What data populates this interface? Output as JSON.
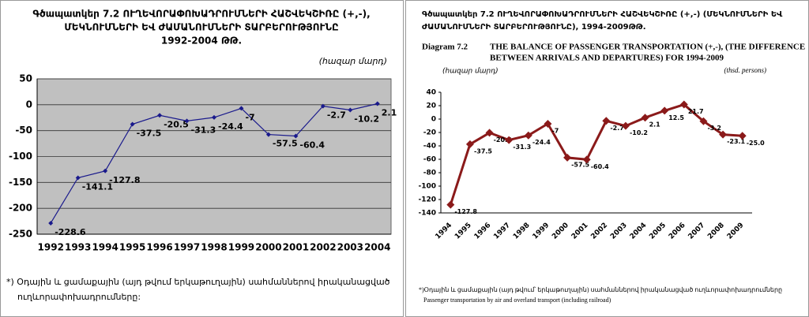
{
  "chart_data": [
    {
      "type": "line",
      "title": [
        "Գծապատկեր 7.2     ՈՒՂԵՎՈՐԱՓՈԽԱԴՐՈՒՄՆԵՐԻ ՀԱՇՎԵԿՇԻՌԸ (+,-),",
        "ՄԵԿՆՈՒՄՆԵՐԻ ԵՎ ԺԱՄԱՆՈՒՄՆԵՐԻ ՏԱՐԲԵՐՈՒԹՅՈՒՆԸ",
        "1992-2004 ԹԹ."
      ],
      "unit_label": "(հազար մարդ)",
      "categories": [
        "1992",
        "1993",
        "1994",
        "1995",
        "1996",
        "1997",
        "1998",
        "1999",
        "2000",
        "2001",
        "2002",
        "2003",
        "2004"
      ],
      "values": [
        -228.6,
        -141.1,
        -127.8,
        -37.5,
        -20.5,
        -31.3,
        -24.4,
        -7,
        -57.5,
        -60.4,
        -2.7,
        -10.2,
        2.1
      ],
      "color": "#1a1a8c",
      "ylim": [
        -250,
        50
      ],
      "yticks": [
        -250,
        -200,
        -150,
        -100,
        -50,
        0,
        50
      ],
      "grid": true,
      "footnote": [
        "*) Օդային և  ցամաքային (այդ թվում երկաթուղային)  սահմաններով իրականացված",
        "ուղևորափոխադրումները:"
      ]
    },
    {
      "type": "line",
      "title": [
        "Գծապատկեր 7.2  ՈՒՂԵՎՈՐԱՓՈԽԱԴՐՈՒՄՆԵՐԻ  ՀԱՇՎԵԿՇԻՌԸ (+,-) (ՄԵԿՆՈՒՄՆԵՐԻ ԵՎ",
        "ԺԱՄԱՆՈՒՄՆԵՐԻ  ՏԱՐԲԵՐՈՒԹՅՈՒՆԸ),  1994-2009ԹԹ."
      ],
      "diagram_label": "Diagram 7.2",
      "subtitle": [
        "THE BALANCE OF PASSENGER TRANSPORTATION (+,-),  (THE DIFFERENCE",
        "BETWEEN ARRIVALS AND DEPARTURES) FOR 1994-2009"
      ],
      "unit_label": "(հազար մարդ)",
      "unit_label_en": "(thsd. persons)",
      "categories": [
        "1994",
        "1995",
        "1996",
        "1997",
        "1998",
        "1999",
        "2000",
        "2001",
        "2002",
        "2003",
        "2004",
        "2005",
        "2006",
        "2007",
        "2008",
        "2009"
      ],
      "values": [
        -127.8,
        -37.5,
        -20.5,
        -31.3,
        -24.4,
        -7,
        -57.5,
        -60.4,
        -2.7,
        -10.2,
        2.1,
        12.5,
        21.7,
        -3.2,
        -23.1,
        -25
      ],
      "value_labels": [
        "-127.8",
        "-37.5",
        "-20.5",
        "-31.3",
        "-24.4",
        "-7",
        "-57.5",
        "-60.4",
        "-2.7",
        "-10.2",
        "2.1",
        "12.5",
        "21.7",
        "-3.2",
        "-23.1",
        "-25.0"
      ],
      "color": "#8b1a1a",
      "ylim": [
        -140,
        40
      ],
      "yticks": [
        -140,
        -120,
        -100,
        -80,
        -60,
        -40,
        -20,
        0,
        20,
        40
      ],
      "grid": false,
      "footnote": [
        "*)Օդային և ցամաքային   (այդ թվում՝ երկաթուղային) սահմաններով իրականացված ուղևորափոխադրումները",
        "Passenger transportation by air and overland transport (including railroad)"
      ]
    }
  ]
}
